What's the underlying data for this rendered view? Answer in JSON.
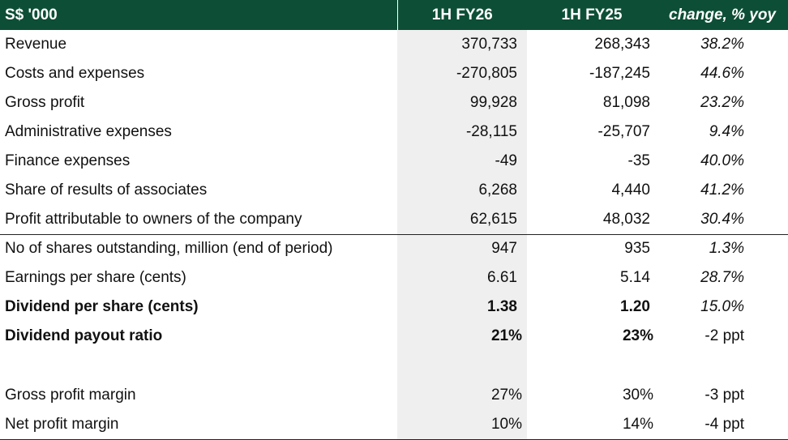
{
  "header": {
    "unit": "S$ '000",
    "col_current": "1H FY26",
    "col_previous": "1H FY25",
    "col_change": "change, % yoy"
  },
  "rows": [
    {
      "label": "Revenue",
      "current": "370,733",
      "previous": "268,343",
      "change": "38.2%"
    },
    {
      "label": "Costs and expenses",
      "current": "-270,805",
      "previous": "-187,245",
      "change": "44.6%"
    },
    {
      "label": "Gross profit",
      "current": "99,928",
      "previous": "81,098",
      "change": "23.2%"
    },
    {
      "label": "Administrative expenses",
      "current": "-28,115",
      "previous": "-25,707",
      "change": "9.4%"
    },
    {
      "label": "Finance expenses",
      "current": "-49",
      "previous": "-35",
      "change": "40.0%"
    },
    {
      "label": "Share of results of associates",
      "current": "6,268",
      "previous": "4,440",
      "change": "41.2%"
    },
    {
      "label": "Profit attributable to owners of the company",
      "current": "62,615",
      "previous": "48,032",
      "change": "30.4%"
    },
    {
      "label": "No of shares outstanding, million (end of period)",
      "current": "947",
      "previous": "935",
      "change": "1.3%"
    },
    {
      "label": "Earnings per share (cents)",
      "current": "6.61",
      "previous": "5.14",
      "change": "28.7%"
    },
    {
      "label": "Dividend per share (cents)",
      "current": "1.38",
      "previous": "1.20",
      "change": "15.0%"
    },
    {
      "label": "Dividend payout ratio",
      "current": "21%",
      "previous": "23%",
      "change": "-2 ppt"
    },
    {
      "label": "Gross profit margin",
      "current": "27%",
      "previous": "30%",
      "change": "-3 ppt"
    },
    {
      "label": "Net profit margin",
      "current": "10%",
      "previous": "14%",
      "change": "-4 ppt"
    }
  ]
}
